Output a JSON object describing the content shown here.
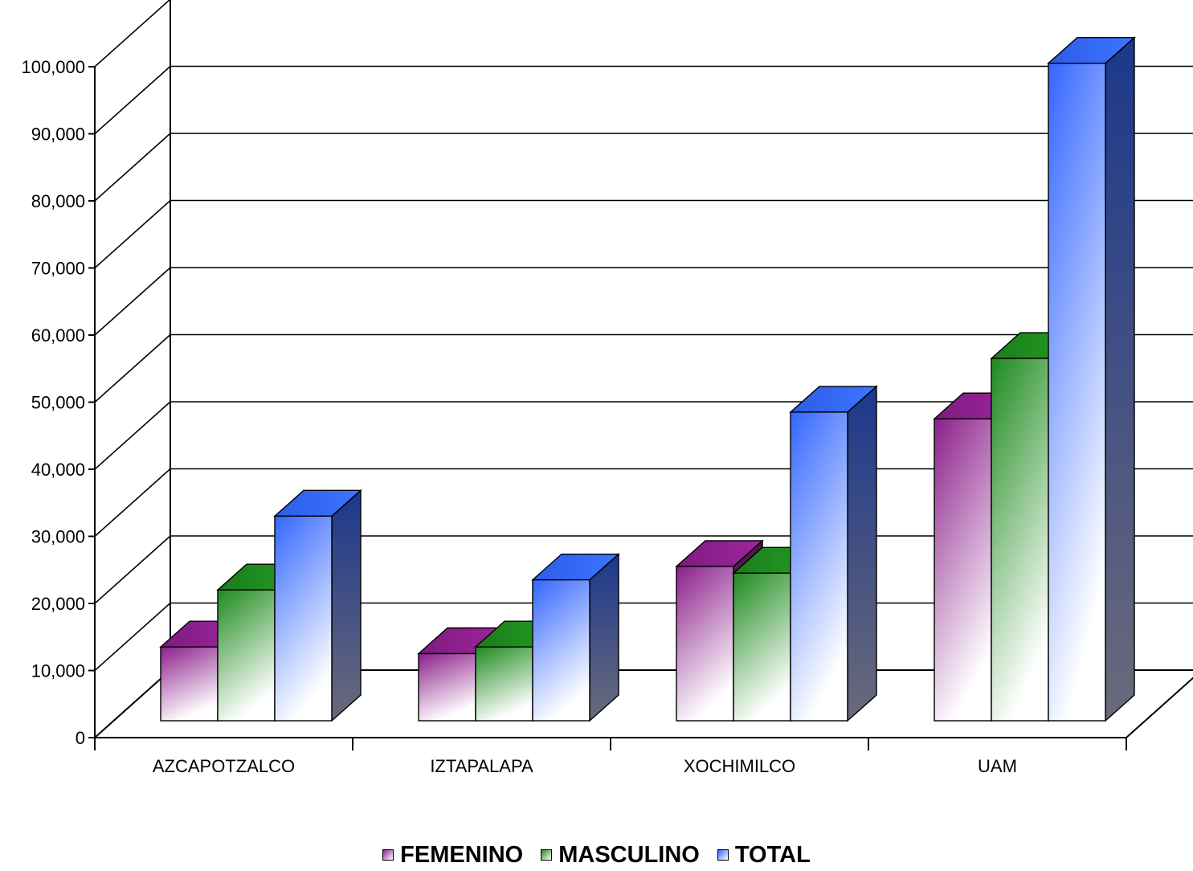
{
  "chart_data": {
    "type": "bar",
    "title": "",
    "xlabel": "",
    "ylabel": "",
    "ylim": [
      0,
      100000
    ],
    "ytick_values": [
      0,
      10000,
      20000,
      30000,
      40000,
      50000,
      60000,
      70000,
      80000,
      90000,
      100000
    ],
    "ytick_labels": [
      "0",
      "10,000",
      "20,000",
      "30,000",
      "40,000",
      "50,000",
      "60,000",
      "70,000",
      "80,000",
      "90,000",
      "100,000"
    ],
    "categories": [
      "AZCAPOTZALCO",
      "IZTAPALAPA",
      "XOCHIMILCO",
      "UAM"
    ],
    "series": [
      {
        "name": "FEMENINO",
        "color": "#8B1F8B",
        "values": [
          11000,
          10000,
          23000,
          45000
        ]
      },
      {
        "name": "MASCULINO",
        "color": "#1E8A1E",
        "values": [
          19500,
          11000,
          22000,
          54000
        ]
      },
      {
        "name": "TOTAL",
        "color": "#3366FF",
        "values": [
          30500,
          21000,
          46000,
          98000
        ]
      }
    ],
    "legend_position": "bottom",
    "grid": true,
    "three_d": true
  }
}
